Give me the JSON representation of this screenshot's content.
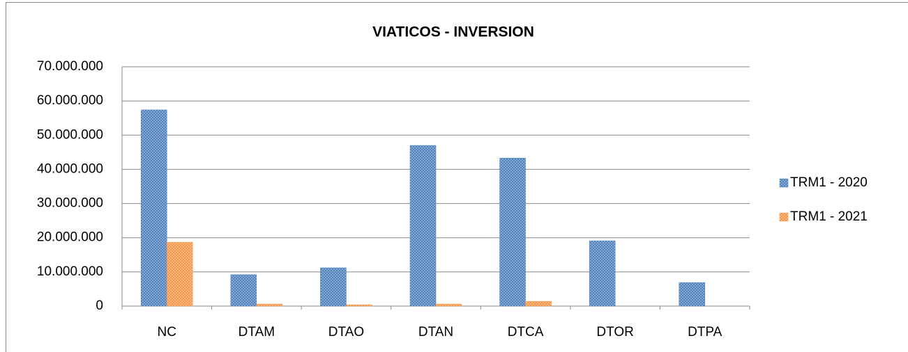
{
  "chart_data": {
    "type": "bar",
    "title": "VIATICOS - INVERSION",
    "categories": [
      "NC",
      "DTAM",
      "DTAO",
      "DTAN",
      "DTCA",
      "DTOR",
      "DTPA"
    ],
    "series": [
      {
        "name": "TRM1 - 2020",
        "color": "#4f81bd",
        "values": [
          57400000,
          9200000,
          11200000,
          47000000,
          43300000,
          19100000,
          6900000
        ]
      },
      {
        "name": "TRM1 - 2021",
        "color": "#f79646",
        "values": [
          18700000,
          600000,
          400000,
          600000,
          1400000,
          0,
          0
        ]
      }
    ],
    "ylim": [
      0,
      70000000
    ],
    "yticks": [
      0,
      {
        "value": 10000000,
        "label": "10.000.000"
      },
      {
        "value": 20000000,
        "label": "20.000.000"
      },
      {
        "value": 30000000,
        "label": "30.000.000"
      },
      {
        "value": 40000000,
        "label": "40.000.000"
      },
      {
        "value": 50000000,
        "label": "50.000.000"
      },
      {
        "value": 60000000,
        "label": "60.000.000"
      },
      {
        "value": 70000000,
        "label": "70.000.000"
      }
    ],
    "grid": true,
    "legend": "right"
  }
}
